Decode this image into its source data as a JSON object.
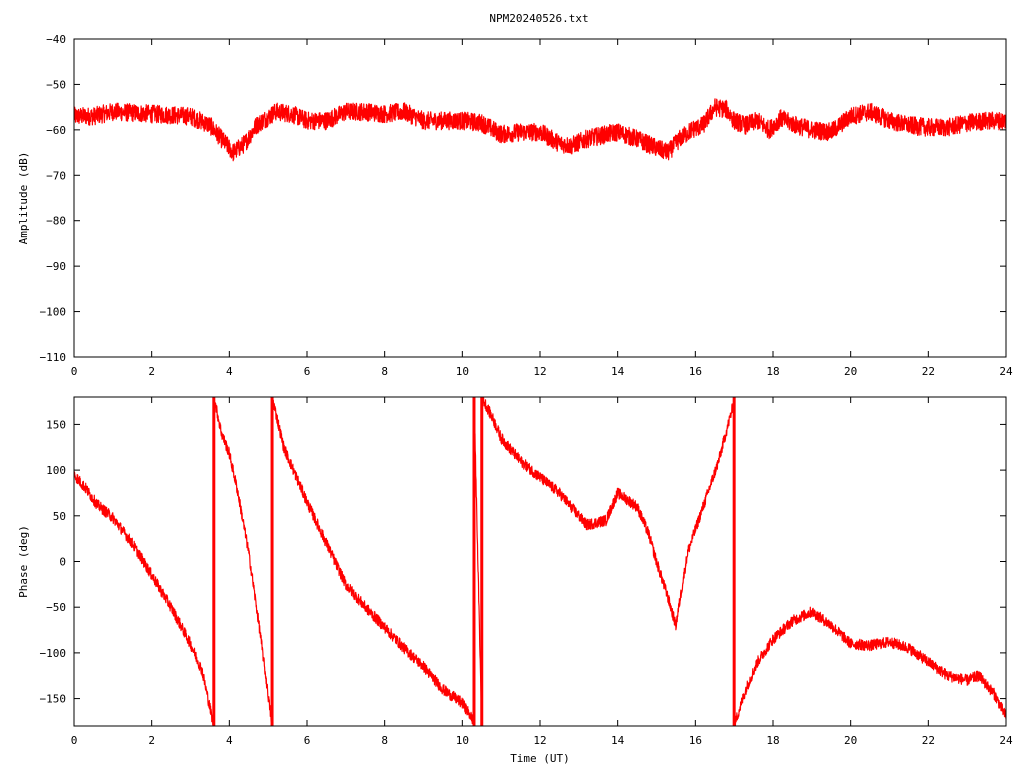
{
  "title": "NPM20240526.txt",
  "colors": {
    "series": "#ff0000",
    "axis": "#000000",
    "background": "#ffffff"
  },
  "chart_data": [
    {
      "type": "line",
      "name": "amplitude-panel",
      "ylabel": "Amplitude (dB)",
      "xlabel": "",
      "xlim": [
        0,
        24
      ],
      "ylim": [
        -110,
        -40
      ],
      "xticks": [
        0,
        2,
        4,
        6,
        8,
        10,
        12,
        14,
        16,
        18,
        20,
        22,
        24
      ],
      "yticks": [
        -110,
        -100,
        -90,
        -80,
        -70,
        -60,
        -50,
        -40
      ],
      "grid": false,
      "noise_band": 2.0,
      "series": [
        {
          "x": [
            0,
            0.5,
            1,
            2,
            3,
            3.5,
            3.9,
            4.1,
            4.4,
            4.7,
            5.2,
            5.6,
            6.0,
            6.5,
            7.0,
            7.5,
            8.0,
            8.5,
            9.0,
            9.5,
            10.0,
            10.5,
            11.0,
            11.5,
            12.0,
            12.5,
            12.8,
            13.2,
            13.7,
            14.0,
            14.5,
            15.0,
            15.3,
            15.6,
            15.9,
            16.2,
            16.5,
            16.8,
            17.0,
            17.3,
            17.6,
            17.9,
            18.2,
            18.6,
            19.0,
            19.5,
            20.0,
            20.5,
            21.0,
            21.5,
            22.0,
            22.5,
            23.0,
            23.5,
            24.0
          ],
          "values": [
            -57,
            -57,
            -56,
            -56.5,
            -57,
            -59,
            -63,
            -65,
            -63,
            -59,
            -56,
            -56.5,
            -58,
            -58,
            -56,
            -56,
            -56.5,
            -56,
            -58,
            -58,
            -58,
            -58.5,
            -61,
            -60.5,
            -60.5,
            -63,
            -63.5,
            -62,
            -61,
            -60.5,
            -62,
            -64,
            -65,
            -62,
            -60,
            -59,
            -55,
            -55.5,
            -58,
            -59,
            -58,
            -60,
            -57.5,
            -59,
            -60,
            -60.5,
            -57,
            -56,
            -58,
            -59,
            -59.5,
            -59.5,
            -58.5,
            -58,
            -58
          ]
        }
      ]
    },
    {
      "type": "line",
      "name": "phase-panel",
      "ylabel": "Phase (deg)",
      "xlabel": "Time (UT)",
      "xlim": [
        0,
        24
      ],
      "ylim": [
        -180,
        180
      ],
      "xticks": [
        0,
        2,
        4,
        6,
        8,
        10,
        12,
        14,
        16,
        18,
        20,
        22,
        24
      ],
      "yticks": [
        -150,
        -100,
        -50,
        0,
        50,
        100,
        150
      ],
      "grid": false,
      "noise_band": 6,
      "series": [
        {
          "x": [
            0,
            0.3,
            0.6,
            0.8,
            1.0,
            1.5,
            2.0,
            2.5,
            3.0,
            3.3,
            3.6,
            3.6,
            3.8,
            4.0,
            4.2,
            4.5,
            4.8,
            5.1,
            5.1,
            5.4,
            5.7,
            6.0,
            6.5,
            7.0,
            7.5,
            8.0,
            8.5,
            9.0,
            9.5,
            10.0,
            10.3,
            10.3,
            10.5,
            10.5,
            10.8,
            11.0,
            11.5,
            12.0,
            12.5,
            12.9,
            13.2,
            13.7,
            14.0,
            14.5,
            14.8,
            15.0,
            15.3,
            15.5,
            15.8,
            16.2,
            16.6,
            17.0,
            17.0,
            17.3,
            17.6,
            18.0,
            18.5,
            19.0,
            19.5,
            20.0,
            20.5,
            21.0,
            21.5,
            22.0,
            22.5,
            23.0,
            23.3,
            23.7,
            24.0
          ],
          "values": [
            95,
            80,
            62,
            55,
            48,
            20,
            -15,
            -50,
            -90,
            -120,
            -180,
            180,
            140,
            118,
            80,
            10,
            -80,
            -180,
            180,
            125,
            95,
            65,
            20,
            -25,
            -50,
            -72,
            -95,
            -115,
            -140,
            -155,
            -175,
            180,
            -180,
            180,
            155,
            135,
            110,
            92,
            75,
            55,
            40,
            45,
            75,
            60,
            30,
            0,
            -40,
            -70,
            10,
            60,
            110,
            175,
            -180,
            -140,
            -110,
            -85,
            -65,
            -55,
            -70,
            -90,
            -92,
            -88,
            -95,
            -110,
            -125,
            -130,
            -125,
            -145,
            -170
          ]
        }
      ]
    }
  ]
}
